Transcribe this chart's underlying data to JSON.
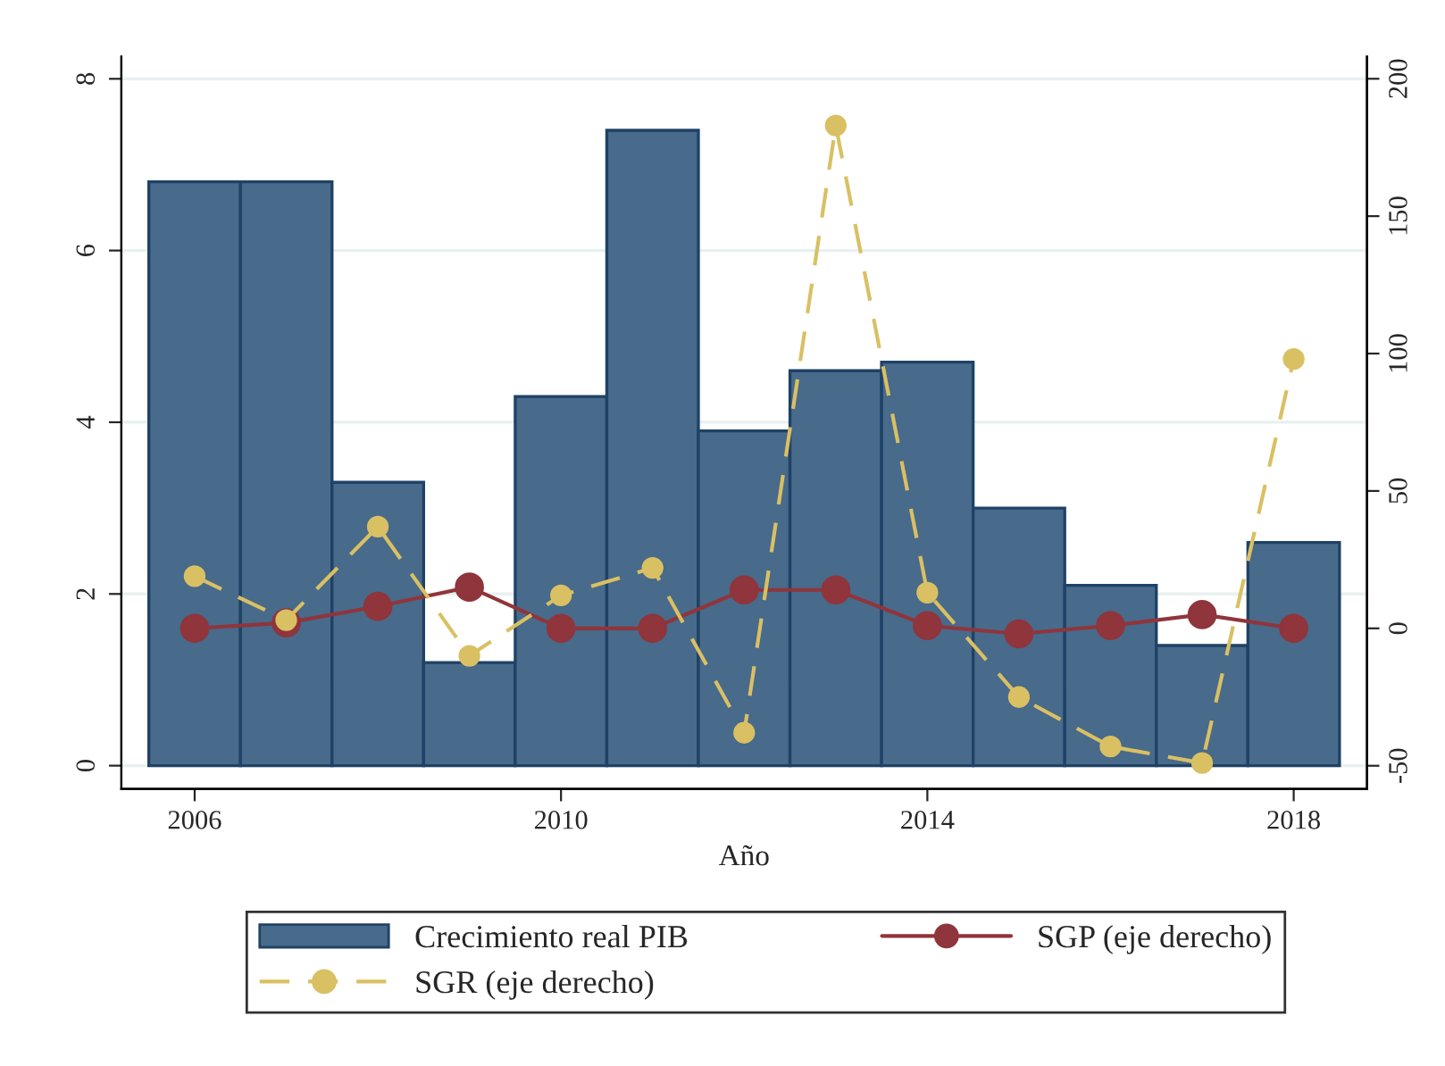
{
  "chart_data": {
    "type": "bar",
    "xlabel": "Año",
    "x": [
      2006,
      2007,
      2008,
      2009,
      2010,
      2011,
      2012,
      2013,
      2014,
      2015,
      2016,
      2017,
      2018
    ],
    "series": [
      {
        "name": "Crecimiento real PIB",
        "color": "#486a8b",
        "values": [
          6.8,
          6.8,
          3.3,
          1.2,
          4.3,
          7.4,
          3.9,
          4.6,
          4.7,
          3.0,
          2.1,
          1.4,
          2.6
        ]
      },
      {
        "name": "SGP (eje derecho)",
        "type": "line",
        "axis": "y2",
        "color": "#90353b",
        "line_style": "solid",
        "values": [
          0,
          2,
          8,
          15,
          0,
          0,
          14,
          14,
          1,
          -2,
          1,
          5,
          0
        ]
      },
      {
        "name": "SGR (eje derecho)",
        "type": "line",
        "axis": "y2",
        "color": "#d9c063",
        "line_style": "dashed",
        "values": [
          19,
          3,
          37,
          -10,
          12,
          22,
          -38,
          183,
          13,
          -25,
          -43,
          -49,
          98
        ]
      }
    ],
    "xlim": [
      2005.2,
      2018.8
    ],
    "xticks": [
      2006,
      2010,
      2014,
      2018
    ],
    "ylim": [
      -0.27,
      8.26
    ],
    "yticks": [
      0,
      2,
      4,
      6,
      8
    ],
    "y2lim": [
      -58.4,
      208.1
    ],
    "y2ticks": [
      -50,
      0,
      50,
      100,
      150,
      200
    ],
    "grid": "y",
    "legend": "bottom",
    "marker": "circle"
  }
}
